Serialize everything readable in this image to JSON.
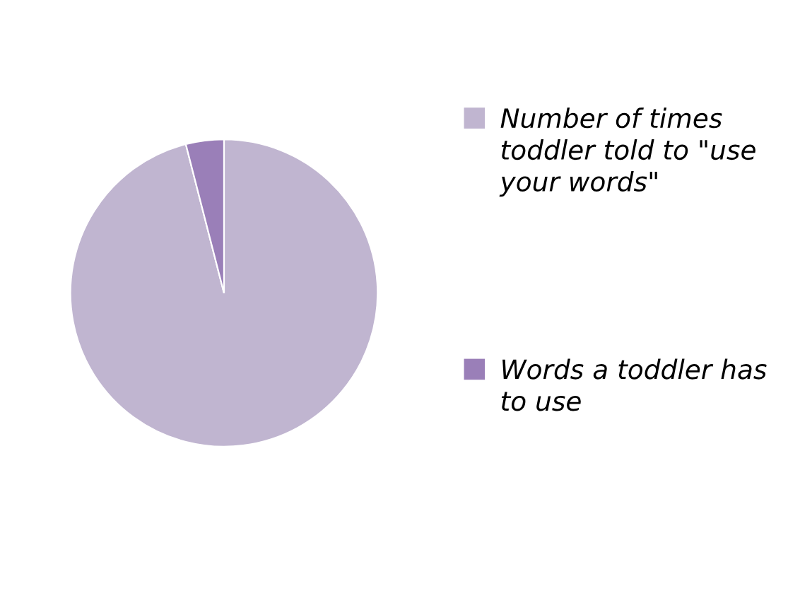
{
  "chart_data": {
    "type": "pie",
    "categories": [
      "Number of times toddler told to \"use your words\"",
      "Words a toddler has to use"
    ],
    "values": [
      96,
      4
    ],
    "colors": [
      "#c0b5d0",
      "#9a7fb8"
    ],
    "legend": "right"
  }
}
